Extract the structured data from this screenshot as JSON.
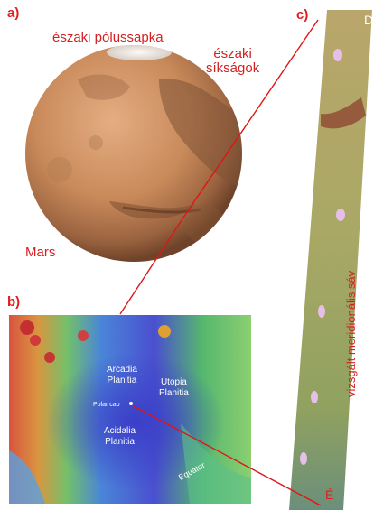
{
  "panels": {
    "a_label": "a)",
    "b_label": "b)",
    "c_label": "c)"
  },
  "globe": {
    "north_cap_label": "északi pólussapka",
    "north_plains_label": "északi\nsíkságok",
    "planet_label": "Mars"
  },
  "map": {
    "arcadia_label": "Arcadia\nPlanitia",
    "utopia_label": "Utopia\nPlanitia",
    "acidalia_label": "Acidalia\nPlanitia",
    "polar_cap_label": "Polar cap",
    "equator_label": "Equator"
  },
  "strip": {
    "top_letter": "D",
    "bottom_letter": "É",
    "strip_label": "vizsgált meridionális sáv"
  },
  "colors": {
    "annotation_red": "#d32222",
    "connector_red": "#e01515",
    "mars_orange": "#c98a5a",
    "strip_olive": "#a9a865",
    "map_blue": "#4a4fd0"
  }
}
